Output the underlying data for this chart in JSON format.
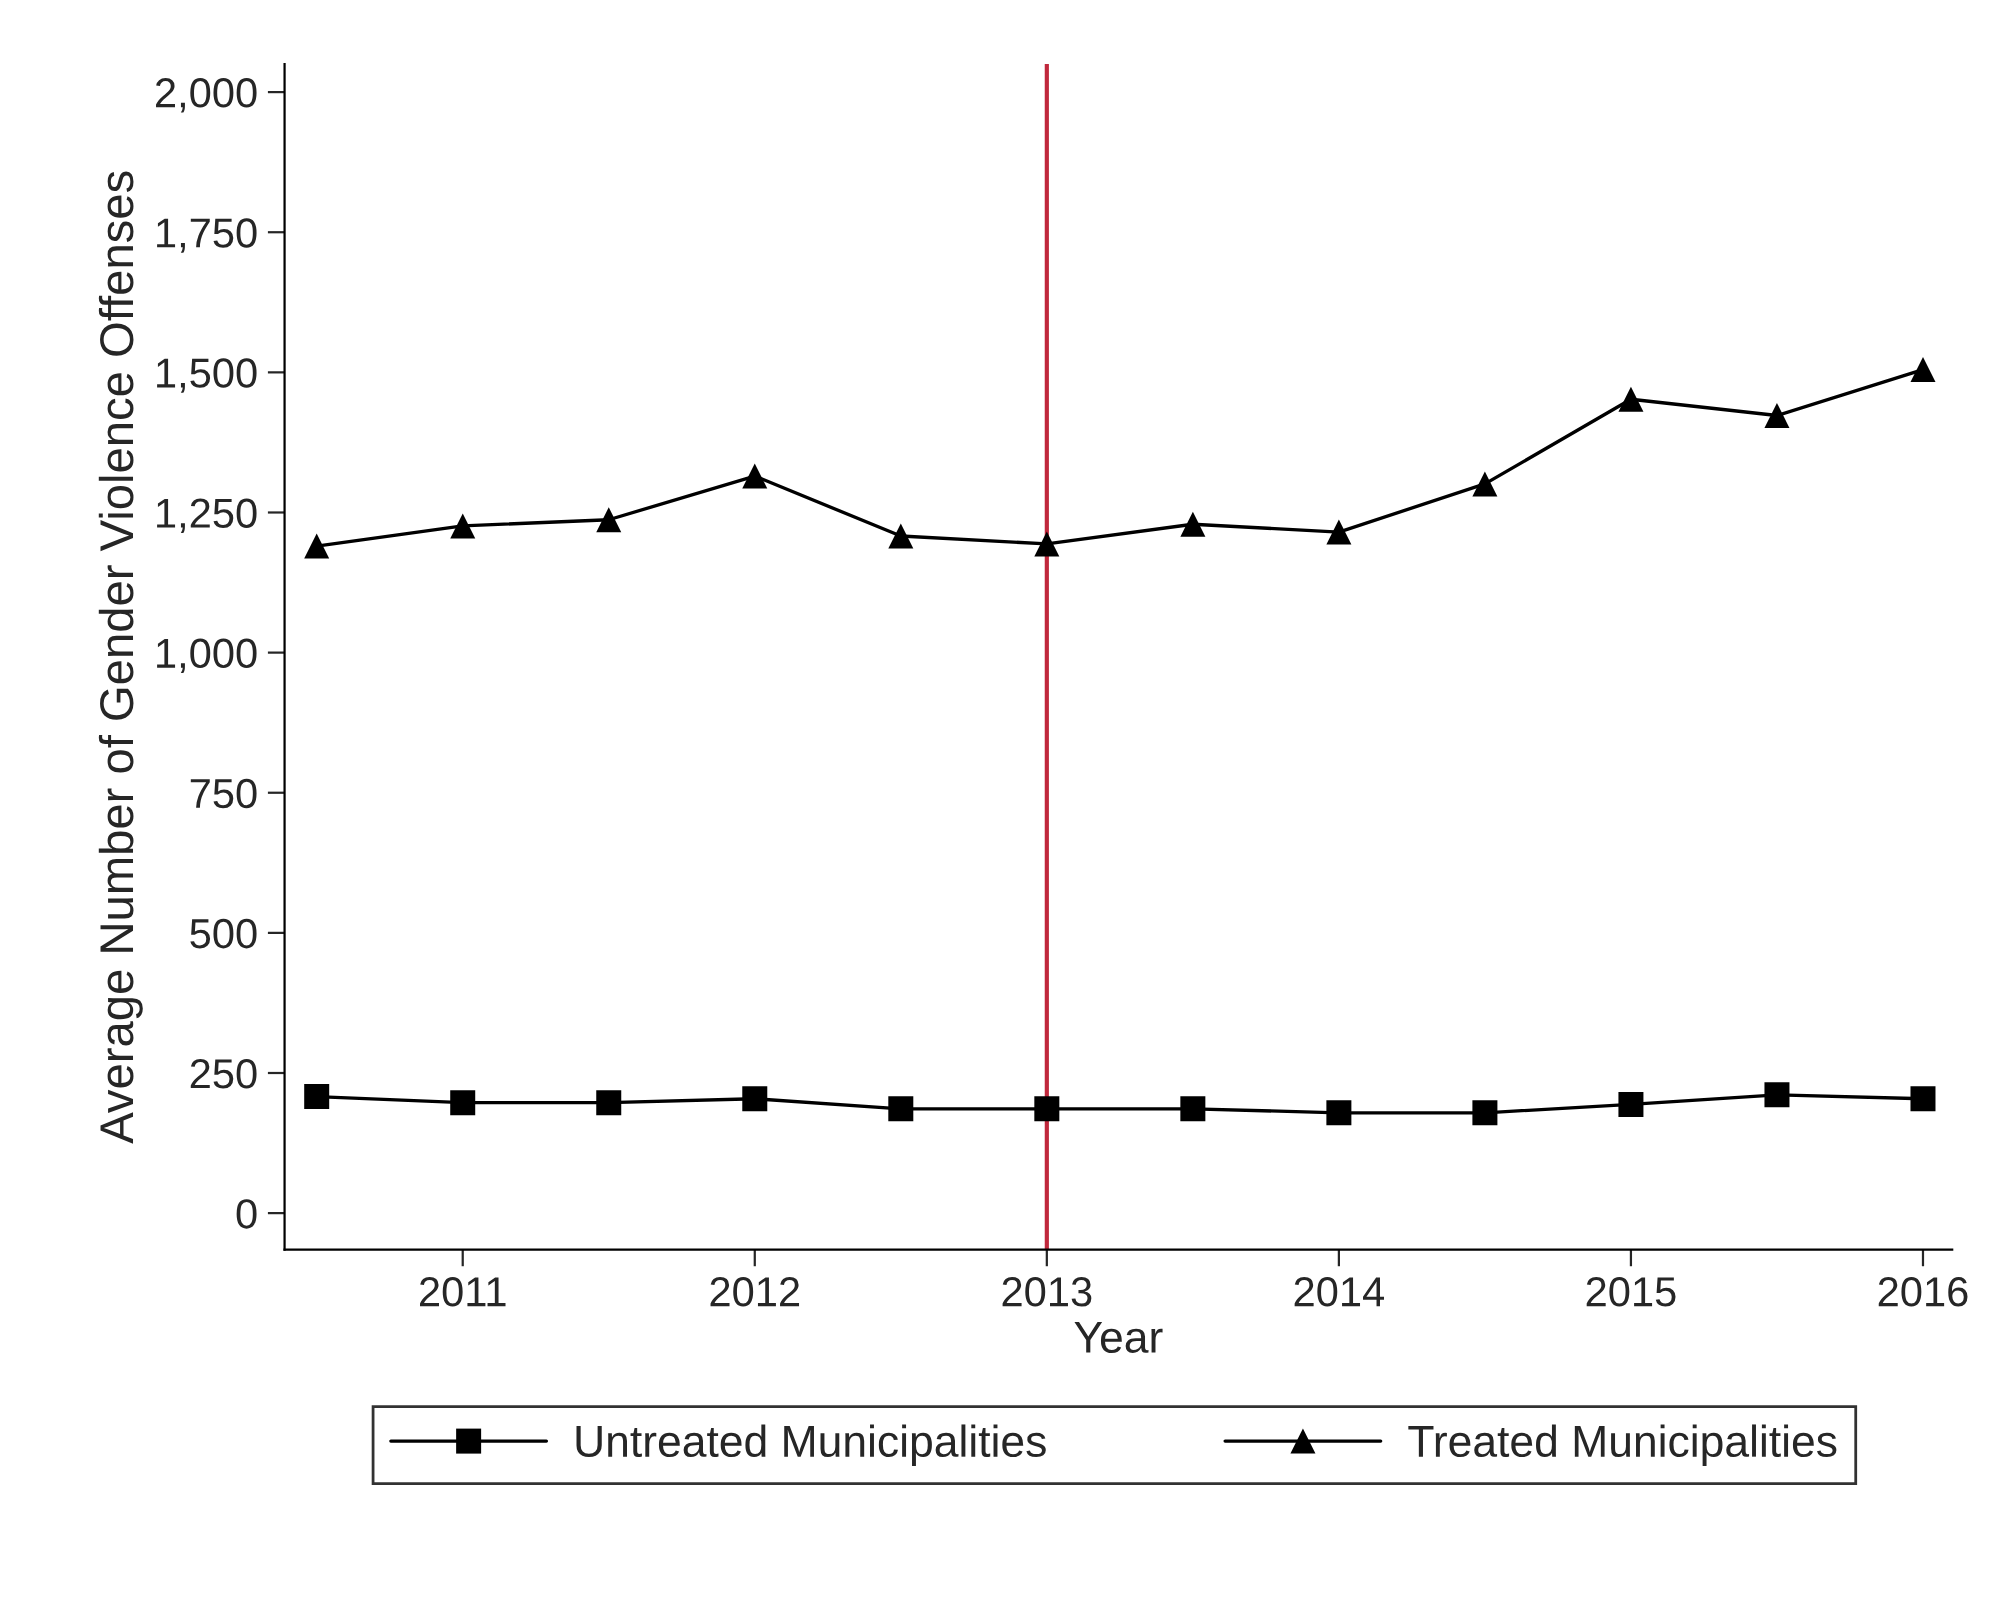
{
  "chart_data": {
    "type": "line",
    "xlabel": "Year",
    "ylabel": "Average Number of Gender Violence Offenses",
    "x": [
      2010.5,
      2011,
      2011.5,
      2012,
      2012.5,
      2013,
      2013.5,
      2014,
      2014.5,
      2015,
      2015.5,
      2016
    ],
    "series": [
      {
        "name": "Untreated Municipalities",
        "color": "#000000",
        "marker": "square",
        "values": [
          208,
          197,
          197,
          204,
          186,
          186,
          186,
          179,
          179,
          194,
          211,
          204
        ]
      },
      {
        "name": "Treated Municipalities",
        "color": "#000000",
        "marker": "triangle",
        "values": [
          1190,
          1226,
          1237,
          1315,
          1208,
          1194,
          1229,
          1215,
          1301,
          1452,
          1423,
          1505
        ]
      }
    ],
    "xlim": [
      2010.39,
      2016.1
    ],
    "xticks": [
      2011,
      2012,
      2013,
      2014,
      2015,
      2016
    ],
    "ylim": [
      -65,
      2050
    ],
    "yticks": [
      {
        "value": 0,
        "label": "0"
      },
      {
        "value": 250,
        "label": "250"
      },
      {
        "value": 500,
        "label": "500"
      },
      {
        "value": 750,
        "label": "750"
      },
      {
        "value": 1000,
        "label": "1,000"
      },
      {
        "value": 1250,
        "label": "1,250"
      },
      {
        "value": 1500,
        "label": "1,500"
      },
      {
        "value": 1750,
        "label": "1,750"
      },
      {
        "value": 2000,
        "label": "2,000"
      }
    ],
    "ref_lines": [
      {
        "axis": "x",
        "value": 2013,
        "label": null,
        "color": "#c0283c"
      }
    ],
    "grid": false,
    "legend": "bottom",
    "line_style": "solid"
  }
}
